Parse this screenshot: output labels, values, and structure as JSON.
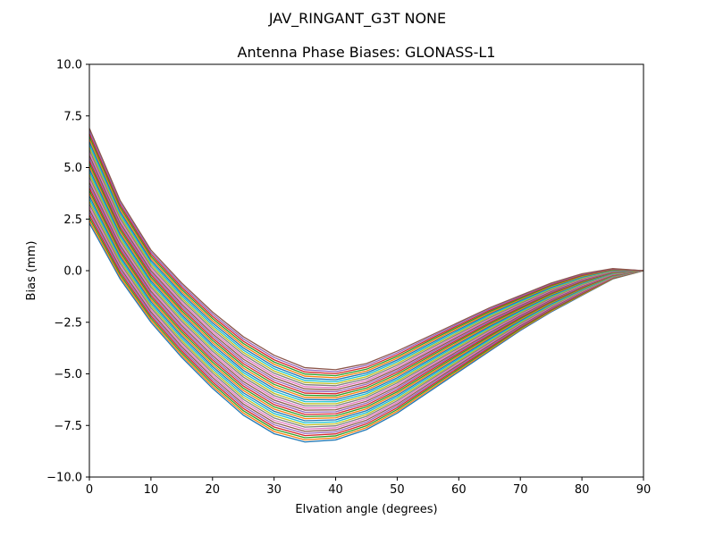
{
  "chart_data": {
    "type": "line",
    "suptitle": "JAV_RINGANT_G3T NONE",
    "title": "Antenna Phase Biases: GLONASS-L1",
    "xlabel": "Elvation angle (degrees)",
    "ylabel": "Bias (mm)",
    "xlim": [
      0,
      90
    ],
    "ylim": [
      -10,
      10
    ],
    "xticks": [
      0,
      10,
      20,
      30,
      40,
      50,
      60,
      70,
      80,
      90
    ],
    "yticks": [
      -10.0,
      -7.5,
      -5.0,
      -2.5,
      0.0,
      2.5,
      5.0,
      7.5,
      10.0
    ],
    "ytick_labels": [
      "−10.0",
      "−7.5",
      "−5.0",
      "−2.5",
      "0.0",
      "2.5",
      "5.0",
      "7.5",
      "10.0"
    ],
    "xtick_labels": [
      "0",
      "10",
      "20",
      "30",
      "40",
      "50",
      "60",
      "70",
      "80",
      "90"
    ],
    "x": [
      0,
      5,
      10,
      15,
      20,
      25,
      30,
      35,
      40,
      45,
      50,
      55,
      60,
      65,
      70,
      75,
      80,
      85,
      90
    ],
    "series_count": 36,
    "envelope": {
      "upper": [
        6.9,
        3.4,
        1.0,
        -0.6,
        -2.0,
        -3.2,
        -4.1,
        -4.7,
        -4.8,
        -4.5,
        -3.9,
        -3.2,
        -2.5,
        -1.8,
        -1.2,
        -0.6,
        -0.15,
        0.1,
        0.0
      ],
      "lower": [
        2.3,
        -0.4,
        -2.5,
        -4.2,
        -5.7,
        -7.0,
        -7.9,
        -8.3,
        -8.2,
        -7.7,
        -6.9,
        -5.9,
        -4.9,
        -3.9,
        -2.9,
        -2.0,
        -1.2,
        -0.4,
        0.0
      ]
    },
    "colors": [
      "#1f77b4",
      "#ff7f0e",
      "#2ca02c",
      "#d62728",
      "#9467bd",
      "#8c564b",
      "#e377c2",
      "#7f7f7f",
      "#bcbd22",
      "#17becf"
    ]
  }
}
